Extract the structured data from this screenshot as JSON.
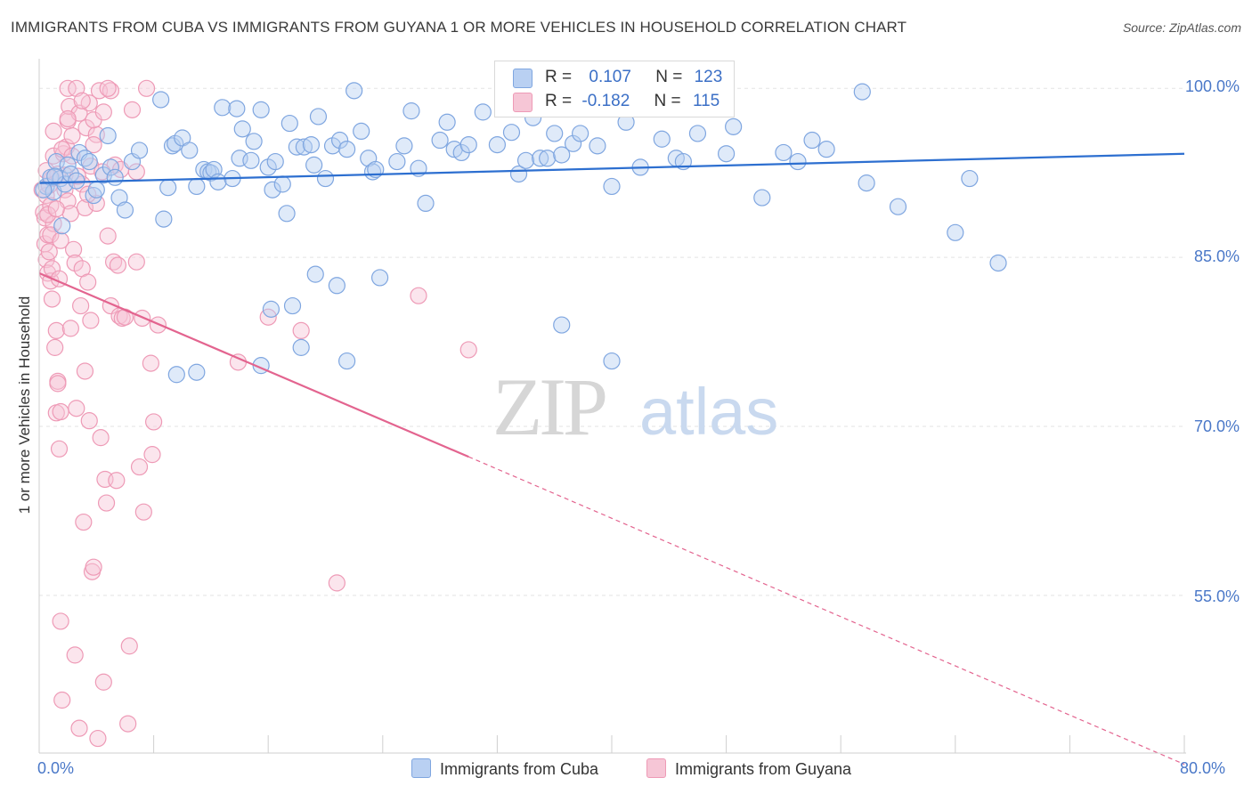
{
  "header": {
    "title": "IMMIGRANTS FROM CUBA VS IMMIGRANTS FROM GUYANA 1 OR MORE VEHICLES IN HOUSEHOLD CORRELATION CHART",
    "source": "Source: ZipAtlas.com"
  },
  "legend": {
    "cuba": {
      "r_label": "R =",
      "r_value": "0.107",
      "n_label": "N =",
      "n_value": "123"
    },
    "guyana": {
      "r_label": "R =",
      "r_value": "-0.182",
      "n_label": "N =",
      "n_value": "115"
    }
  },
  "watermark": {
    "zip": "ZIP",
    "atlas": "atlas"
  },
  "colors": {
    "cuba_fill": "#b9d0f2",
    "cuba_stroke": "#7fa6e0",
    "cuba_line": "#2d6fd0",
    "guyana_fill": "#f6c6d6",
    "guyana_stroke": "#ee9ab6",
    "guyana_line": "#e3648f",
    "tick_label": "#4a78c8",
    "grid": "#e3e3e3"
  },
  "chart_data": {
    "type": "scatter",
    "title": "IMMIGRANTS FROM CUBA VS IMMIGRANTS FROM GUYANA 1 OR MORE VEHICLES IN HOUSEHOLD CORRELATION CHART",
    "xlabel": "",
    "ylabel": "1 or more Vehicles in Household",
    "xlim": [
      0,
      80
    ],
    "ylim": [
      41,
      102
    ],
    "x_tick_labels": [
      "0.0%",
      "80.0%"
    ],
    "y_ticks": [
      55,
      70,
      85,
      100
    ],
    "y_tick_labels": [
      "55.0%",
      "70.0%",
      "85.0%",
      "100.0%"
    ],
    "grid": true,
    "legend_position": "top-center",
    "series": [
      {
        "name": "Immigrants from Cuba",
        "trend": {
          "x": [
            0,
            80
          ],
          "y": [
            91.6,
            94.2
          ],
          "style": "solid"
        },
        "points": [
          [
            0.5,
            91.3
          ],
          [
            0.8,
            92.1
          ],
          [
            1.0,
            90.8
          ],
          [
            1.2,
            93.5
          ],
          [
            1.5,
            92.0
          ],
          [
            1.6,
            87.8
          ],
          [
            1.8,
            91.5
          ],
          [
            2.0,
            93.2
          ],
          [
            2.2,
            92.4
          ],
          [
            2.8,
            94.3
          ],
          [
            3.2,
            93.8
          ],
          [
            3.5,
            93.5
          ],
          [
            3.8,
            90.5
          ],
          [
            4.0,
            91.0
          ],
          [
            4.5,
            92.3
          ],
          [
            4.8,
            95.8
          ],
          [
            5.0,
            93.0
          ],
          [
            5.3,
            92.1
          ],
          [
            5.6,
            90.3
          ],
          [
            6.0,
            89.2
          ],
          [
            6.5,
            93.5
          ],
          [
            7.0,
            94.5
          ],
          [
            8.5,
            99.0
          ],
          [
            8.7,
            88.4
          ],
          [
            9.0,
            91.2
          ],
          [
            9.3,
            94.9
          ],
          [
            9.5,
            95.1
          ],
          [
            10.0,
            95.6
          ],
          [
            10.5,
            94.5
          ],
          [
            11.0,
            91.3
          ],
          [
            11.5,
            92.8
          ],
          [
            11.8,
            92.6
          ],
          [
            12.0,
            92.5
          ],
          [
            12.2,
            92.8
          ],
          [
            12.5,
            91.7
          ],
          [
            12.8,
            98.3
          ],
          [
            13.5,
            92.0
          ],
          [
            13.8,
            98.2
          ],
          [
            14.0,
            93.8
          ],
          [
            14.2,
            96.4
          ],
          [
            14.8,
            93.6
          ],
          [
            15.0,
            95.3
          ],
          [
            15.5,
            98.1
          ],
          [
            16.0,
            93.0
          ],
          [
            16.3,
            91.0
          ],
          [
            16.5,
            93.5
          ],
          [
            17.0,
            91.5
          ],
          [
            17.3,
            88.9
          ],
          [
            17.5,
            96.9
          ],
          [
            18.0,
            94.8
          ],
          [
            18.5,
            94.8
          ],
          [
            19.0,
            95.0
          ],
          [
            19.2,
            93.2
          ],
          [
            19.5,
            97.5
          ],
          [
            20.0,
            92.0
          ],
          [
            20.5,
            94.9
          ],
          [
            21.0,
            95.4
          ],
          [
            21.5,
            94.6
          ],
          [
            22.0,
            99.8
          ],
          [
            22.5,
            96.2
          ],
          [
            23.0,
            93.8
          ],
          [
            23.3,
            92.6
          ],
          [
            23.5,
            92.8
          ],
          [
            25.0,
            93.5
          ],
          [
            25.5,
            94.9
          ],
          [
            26.0,
            98.0
          ],
          [
            26.5,
            92.9
          ],
          [
            27.0,
            89.8
          ],
          [
            28.0,
            95.4
          ],
          [
            28.5,
            97.0
          ],
          [
            29.0,
            94.6
          ],
          [
            29.5,
            94.3
          ],
          [
            30.0,
            95.0
          ],
          [
            31.0,
            97.9
          ],
          [
            32.0,
            95.0
          ],
          [
            33.0,
            96.1
          ],
          [
            33.5,
            92.4
          ],
          [
            34.0,
            93.6
          ],
          [
            34.5,
            97.4
          ],
          [
            35.0,
            93.8
          ],
          [
            35.5,
            93.8
          ],
          [
            36.0,
            96.0
          ],
          [
            36.5,
            94.1
          ],
          [
            37.0,
            98.8
          ],
          [
            37.3,
            95.1
          ],
          [
            37.8,
            96.0
          ],
          [
            38.0,
            98.5
          ],
          [
            39.0,
            94.9
          ],
          [
            40.0,
            91.3
          ],
          [
            41.0,
            97.0
          ],
          [
            42.0,
            93.0
          ],
          [
            43.5,
            95.5
          ],
          [
            44.5,
            93.8
          ],
          [
            45.0,
            93.5
          ],
          [
            46.0,
            96.0
          ],
          [
            48.0,
            94.2
          ],
          [
            48.5,
            96.6
          ],
          [
            50.5,
            90.3
          ],
          [
            52.0,
            94.3
          ],
          [
            53.0,
            93.5
          ],
          [
            54.0,
            95.4
          ],
          [
            55.0,
            94.6
          ],
          [
            57.5,
            99.7
          ],
          [
            57.8,
            91.6
          ],
          [
            60.0,
            89.5
          ],
          [
            64.0,
            87.2
          ],
          [
            65.0,
            92.0
          ],
          [
            67.0,
            84.5
          ],
          [
            19.3,
            83.5
          ],
          [
            20.8,
            82.5
          ],
          [
            23.8,
            83.2
          ],
          [
            36.5,
            79.0
          ],
          [
            40.0,
            75.8
          ],
          [
            16.2,
            80.4
          ],
          [
            17.7,
            80.7
          ],
          [
            18.3,
            77.0
          ],
          [
            21.5,
            75.8
          ],
          [
            9.6,
            74.6
          ],
          [
            11.0,
            74.8
          ],
          [
            15.5,
            75.4
          ],
          [
            0.3,
            91.0
          ],
          [
            1.1,
            92.2
          ],
          [
            2.6,
            91.8
          ]
        ]
      },
      {
        "name": "Immigrants from Guyana",
        "trend": {
          "x": [
            0,
            30
          ],
          "y": [
            83.6,
            67.3
          ],
          "style": "solid",
          "extended": {
            "x": [
              30,
              80
            ],
            "y": [
              67.3,
              40.0
            ],
            "style": "dashed"
          }
        },
        "points": [
          [
            0.2,
            91.0
          ],
          [
            0.3,
            89.0
          ],
          [
            0.4,
            88.5
          ],
          [
            0.4,
            86.2
          ],
          [
            0.5,
            90.5
          ],
          [
            0.5,
            84.8
          ],
          [
            0.6,
            87.0
          ],
          [
            0.6,
            83.6
          ],
          [
            0.7,
            91.4
          ],
          [
            0.7,
            85.5
          ],
          [
            0.8,
            89.6
          ],
          [
            0.8,
            82.9
          ],
          [
            0.9,
            92.0
          ],
          [
            0.9,
            81.3
          ],
          [
            1.0,
            88.0
          ],
          [
            1.0,
            94.0
          ],
          [
            1.1,
            77.0
          ],
          [
            1.2,
            78.5
          ],
          [
            1.2,
            71.2
          ],
          [
            1.3,
            74.0
          ],
          [
            1.3,
            73.8
          ],
          [
            1.4,
            68.0
          ],
          [
            1.5,
            71.3
          ],
          [
            1.5,
            52.7
          ],
          [
            1.6,
            45.7
          ],
          [
            1.7,
            94.2
          ],
          [
            1.8,
            91.0
          ],
          [
            1.9,
            94.8
          ],
          [
            2.0,
            90.0
          ],
          [
            2.0,
            97.1
          ],
          [
            2.1,
            98.4
          ],
          [
            2.2,
            78.7
          ],
          [
            2.3,
            95.8
          ],
          [
            2.4,
            85.7
          ],
          [
            2.5,
            84.5
          ],
          [
            2.5,
            49.7
          ],
          [
            2.6,
            71.6
          ],
          [
            2.8,
            43.2
          ],
          [
            2.8,
            97.8
          ],
          [
            3.0,
            84.0
          ],
          [
            3.0,
            91.5
          ],
          [
            3.1,
            61.5
          ],
          [
            3.2,
            74.9
          ],
          [
            3.3,
            96.5
          ],
          [
            3.4,
            82.8
          ],
          [
            3.5,
            70.5
          ],
          [
            3.6,
            79.4
          ],
          [
            3.7,
            57.1
          ],
          [
            3.8,
            57.5
          ],
          [
            4.0,
            95.9
          ],
          [
            4.1,
            42.3
          ],
          [
            4.3,
            69.0
          ],
          [
            4.5,
            47.3
          ],
          [
            4.6,
            65.3
          ],
          [
            4.7,
            63.2
          ],
          [
            4.8,
            86.9
          ],
          [
            5.0,
            80.7
          ],
          [
            5.2,
            84.6
          ],
          [
            5.3,
            93.2
          ],
          [
            5.4,
            65.2
          ],
          [
            5.5,
            84.3
          ],
          [
            5.6,
            79.8
          ],
          [
            5.8,
            79.6
          ],
          [
            6.0,
            79.7
          ],
          [
            6.2,
            43.6
          ],
          [
            6.3,
            50.5
          ],
          [
            6.5,
            98.1
          ],
          [
            6.8,
            84.6
          ],
          [
            7.0,
            66.4
          ],
          [
            7.2,
            79.6
          ],
          [
            7.3,
            62.4
          ],
          [
            7.5,
            100.0
          ],
          [
            7.8,
            75.6
          ],
          [
            7.9,
            67.5
          ],
          [
            8.0,
            70.4
          ],
          [
            8.3,
            79.0
          ],
          [
            3.5,
            98.7
          ],
          [
            3.8,
            97.2
          ],
          [
            4.2,
            99.8
          ],
          [
            4.5,
            97.9
          ],
          [
            2.0,
            100.0
          ],
          [
            2.6,
            100.0
          ],
          [
            5.0,
            99.8
          ],
          [
            1.8,
            92.3
          ],
          [
            2.2,
            88.9
          ],
          [
            3.2,
            89.4
          ],
          [
            4.0,
            89.8
          ],
          [
            0.8,
            87.0
          ],
          [
            1.5,
            86.5
          ],
          [
            2.9,
            80.7
          ],
          [
            13.9,
            75.7
          ],
          [
            16.0,
            79.7
          ],
          [
            18.3,
            78.5
          ],
          [
            20.8,
            56.1
          ],
          [
            26.5,
            81.6
          ],
          [
            30.0,
            76.8
          ],
          [
            1.3,
            92.4
          ],
          [
            1.6,
            94.6
          ],
          [
            2.7,
            92.2
          ],
          [
            3.4,
            90.6
          ],
          [
            0.6,
            88.8
          ],
          [
            1.2,
            89.3
          ],
          [
            0.9,
            84.0
          ],
          [
            1.4,
            83.1
          ],
          [
            3.6,
            93.1
          ],
          [
            4.4,
            92.6
          ],
          [
            5.7,
            92.8
          ],
          [
            6.8,
            92.6
          ],
          [
            2.0,
            97.3
          ],
          [
            3.8,
            95.0
          ],
          [
            1.0,
            96.2
          ],
          [
            2.3,
            94.0
          ],
          [
            4.8,
            100.0
          ],
          [
            3.0,
            98.9
          ],
          [
            0.5,
            92.7
          ]
        ]
      }
    ]
  },
  "axes": {
    "ylabel": "1 or more Vehicles in Household",
    "x_min_label": "0.0%",
    "x_max_label": "80.0%",
    "y_labels": [
      "100.0%",
      "85.0%",
      "70.0%",
      "55.0%"
    ]
  },
  "bottom_legend": {
    "cuba": "Immigrants from Cuba",
    "guyana": "Immigrants from Guyana"
  }
}
